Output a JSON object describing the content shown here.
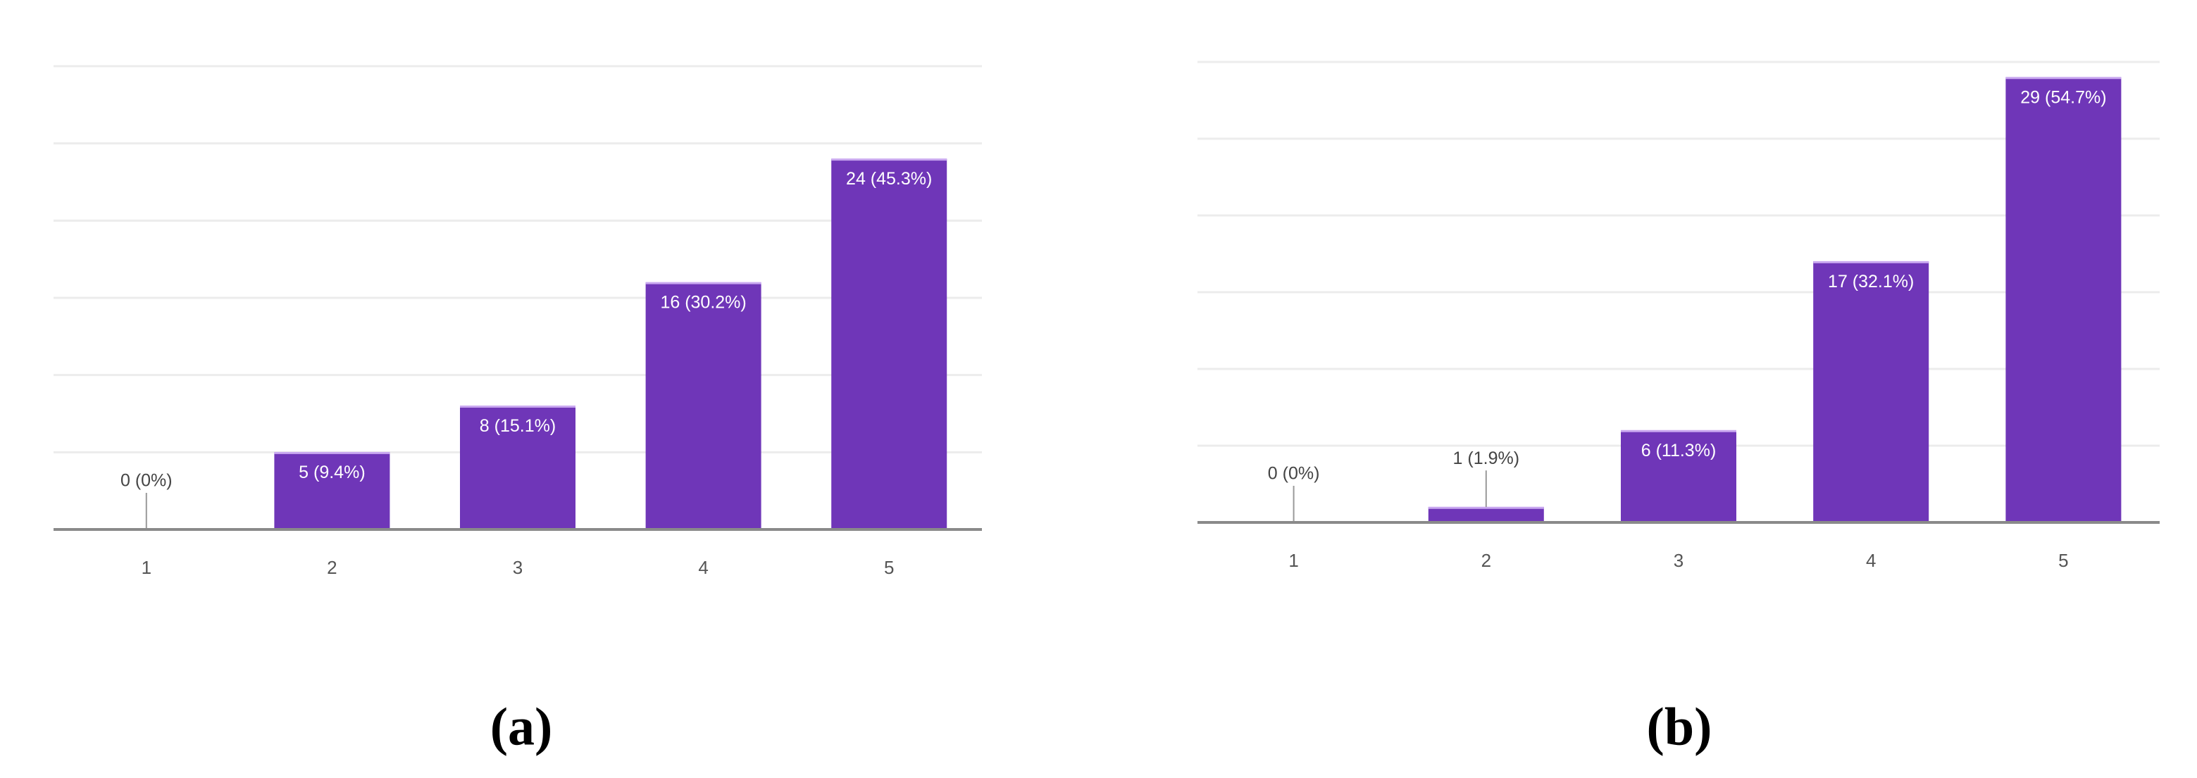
{
  "chart_data": [
    {
      "type": "bar",
      "caption": "(a)",
      "categories": [
        "1",
        "2",
        "3",
        "4",
        "5"
      ],
      "values": [
        0,
        5,
        8,
        16,
        24
      ],
      "value_labels": [
        "0 (0%)",
        "5 (9.4%)",
        "8 (15.1%)",
        "16 (30.2%)",
        "24 (45.3%)"
      ],
      "color": "#6f36b8",
      "ylim": [
        0,
        30
      ],
      "yticks": [
        0,
        5,
        10,
        15,
        20,
        25,
        30
      ],
      "grid": true
    },
    {
      "type": "bar",
      "caption": "(b)",
      "categories": [
        "1",
        "2",
        "3",
        "4",
        "5"
      ],
      "values": [
        0,
        1,
        6,
        17,
        29
      ],
      "value_labels": [
        "0 (0%)",
        "1 (1.9%)",
        "6 (11.3%)",
        "17 (32.1%)",
        "29 (54.7%)"
      ],
      "color": "#6f36b8",
      "ylim": [
        0,
        30
      ],
      "yticks": [
        0,
        5,
        10,
        15,
        20,
        25,
        30
      ],
      "grid": true
    }
  ]
}
